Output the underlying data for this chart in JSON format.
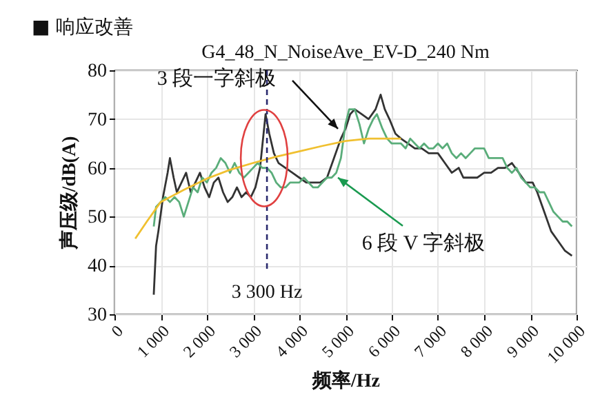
{
  "chart_data": {
    "type": "line",
    "title": "■ 响应改善",
    "subtitle": "G4_48_N_NoiseAve_EV-D_240 Nm",
    "xlabel": "频率/Hz",
    "ylabel": "声压级/dB(A)",
    "xlim": [
      0,
      10000
    ],
    "xticks": [
      {
        "value": 0,
        "label": "0"
      },
      {
        "value": 1000,
        "label": "1 000"
      },
      {
        "value": 2000,
        "label": "2 000"
      },
      {
        "value": 3000,
        "label": "3 000"
      },
      {
        "value": 4000,
        "label": "4 000"
      },
      {
        "value": 5000,
        "label": "5 000"
      },
      {
        "value": 6000,
        "label": "6 000"
      },
      {
        "value": 7000,
        "label": "7 000"
      },
      {
        "value": 8000,
        "label": "8 000"
      },
      {
        "value": 9000,
        "label": "9 000"
      },
      {
        "value": 10000,
        "label": "10 000"
      }
    ],
    "ylim": [
      30,
      80
    ],
    "yticks": [
      30,
      40,
      50,
      60,
      70,
      80
    ],
    "grid": true,
    "series": [
      {
        "color": "#333333",
        "x": [
          850,
          900,
          950,
          1050,
          1150,
          1200,
          1280,
          1350,
          1450,
          1550,
          1650,
          1750,
          1850,
          1950,
          2050,
          2150,
          2250,
          2350,
          2450,
          2550,
          2650,
          2750,
          2850,
          2950,
          3050,
          3150,
          3270,
          3350,
          3450,
          3550,
          3700,
          3850,
          4000,
          4150,
          4300,
          4450,
          4600,
          4750,
          4900,
          5000,
          5100,
          5200,
          5350,
          5500,
          5650,
          5760,
          5850,
          5950,
          6080,
          6200,
          6350,
          6500,
          6650,
          6800,
          7000,
          7150,
          7300,
          7450,
          7550,
          7700,
          7850,
          8000,
          8150,
          8300,
          8450,
          8600,
          8750,
          8900,
          9050,
          9150,
          9300,
          9450,
          9600,
          9750,
          9900
        ],
        "values": [
          34,
          44,
          47,
          54,
          59,
          62,
          58,
          55,
          57,
          59,
          55,
          57,
          59,
          56,
          54,
          57,
          58,
          55,
          53,
          54,
          56,
          54,
          55,
          54,
          56,
          60,
          71,
          67,
          63,
          61,
          60,
          59,
          58,
          57,
          57,
          57,
          58,
          62,
          66,
          68,
          71,
          72,
          71,
          70,
          72,
          75,
          72,
          70,
          67,
          66,
          65,
          64,
          64,
          63,
          63,
          61,
          59,
          60,
          58,
          58,
          58,
          59,
          59,
          60,
          60,
          61,
          59,
          57,
          57,
          55,
          51,
          47,
          45,
          43,
          42
        ]
      },
      {
        "color": "#5aad7a",
        "x": [
          850,
          900,
          1000,
          1100,
          1200,
          1300,
          1400,
          1500,
          1600,
          1700,
          1800,
          1900,
          2000,
          2100,
          2200,
          2300,
          2400,
          2500,
          2600,
          2700,
          2800,
          2900,
          3000,
          3100,
          3200,
          3300,
          3400,
          3500,
          3600,
          3700,
          3800,
          3900,
          4000,
          4100,
          4200,
          4300,
          4400,
          4500,
          4600,
          4700,
          4800,
          4900,
          5000,
          5080,
          5200,
          5300,
          5400,
          5500,
          5600,
          5680,
          5800,
          5900,
          6000,
          6100,
          6200,
          6300,
          6400,
          6500,
          6600,
          6700,
          6800,
          6900,
          7000,
          7100,
          7200,
          7300,
          7400,
          7500,
          7600,
          7700,
          7800,
          7900,
          8000,
          8100,
          8200,
          8300,
          8400,
          8500,
          8600,
          8700,
          8800,
          8900,
          9000,
          9100,
          9200,
          9300,
          9400,
          9500,
          9600,
          9700,
          9800,
          9900
        ],
        "values": [
          48,
          52,
          53,
          54,
          53,
          54,
          53,
          50,
          53,
          56,
          55,
          58,
          57,
          59,
          60,
          62,
          61,
          59,
          61,
          59,
          58,
          59,
          60,
          61,
          60,
          60,
          59,
          57,
          56,
          56,
          57,
          57,
          57,
          58,
          57,
          56,
          56,
          57,
          58,
          58,
          59,
          62,
          69,
          72,
          72,
          69,
          65,
          68,
          70,
          71,
          68,
          66,
          65,
          65,
          65,
          64,
          66,
          65,
          64,
          65,
          64,
          64,
          65,
          64,
          65,
          63,
          62,
          63,
          62,
          63,
          64,
          64,
          64,
          62,
          62,
          62,
          62,
          60,
          59,
          60,
          58,
          57,
          56,
          56,
          55,
          55,
          53,
          51,
          50,
          49,
          49,
          48
        ]
      },
      {
        "type": "line",
        "color": "#f0c030",
        "x": [
          450,
          700,
          1000,
          1500,
          2000,
          2500,
          3000,
          3500,
          4000,
          4500,
          5000,
          5500,
          6200
        ],
        "values": [
          45.5,
          49,
          53,
          55.5,
          57.8,
          59.6,
          61,
          62.3,
          63.4,
          64.5,
          65.5,
          66,
          66
        ]
      }
    ],
    "ref_lines": [
      {
        "axis": "x",
        "value": 3300,
        "label": "3 300 Hz",
        "color": "#2a2a6e",
        "line_style": "dashed"
      }
    ],
    "annotations": [
      {
        "text": "3 段一字斜极",
        "x": 4836,
        "y": 68
      },
      {
        "text": "6 段 V 字斜极",
        "x": 4836,
        "y": 58
      }
    ]
  }
}
